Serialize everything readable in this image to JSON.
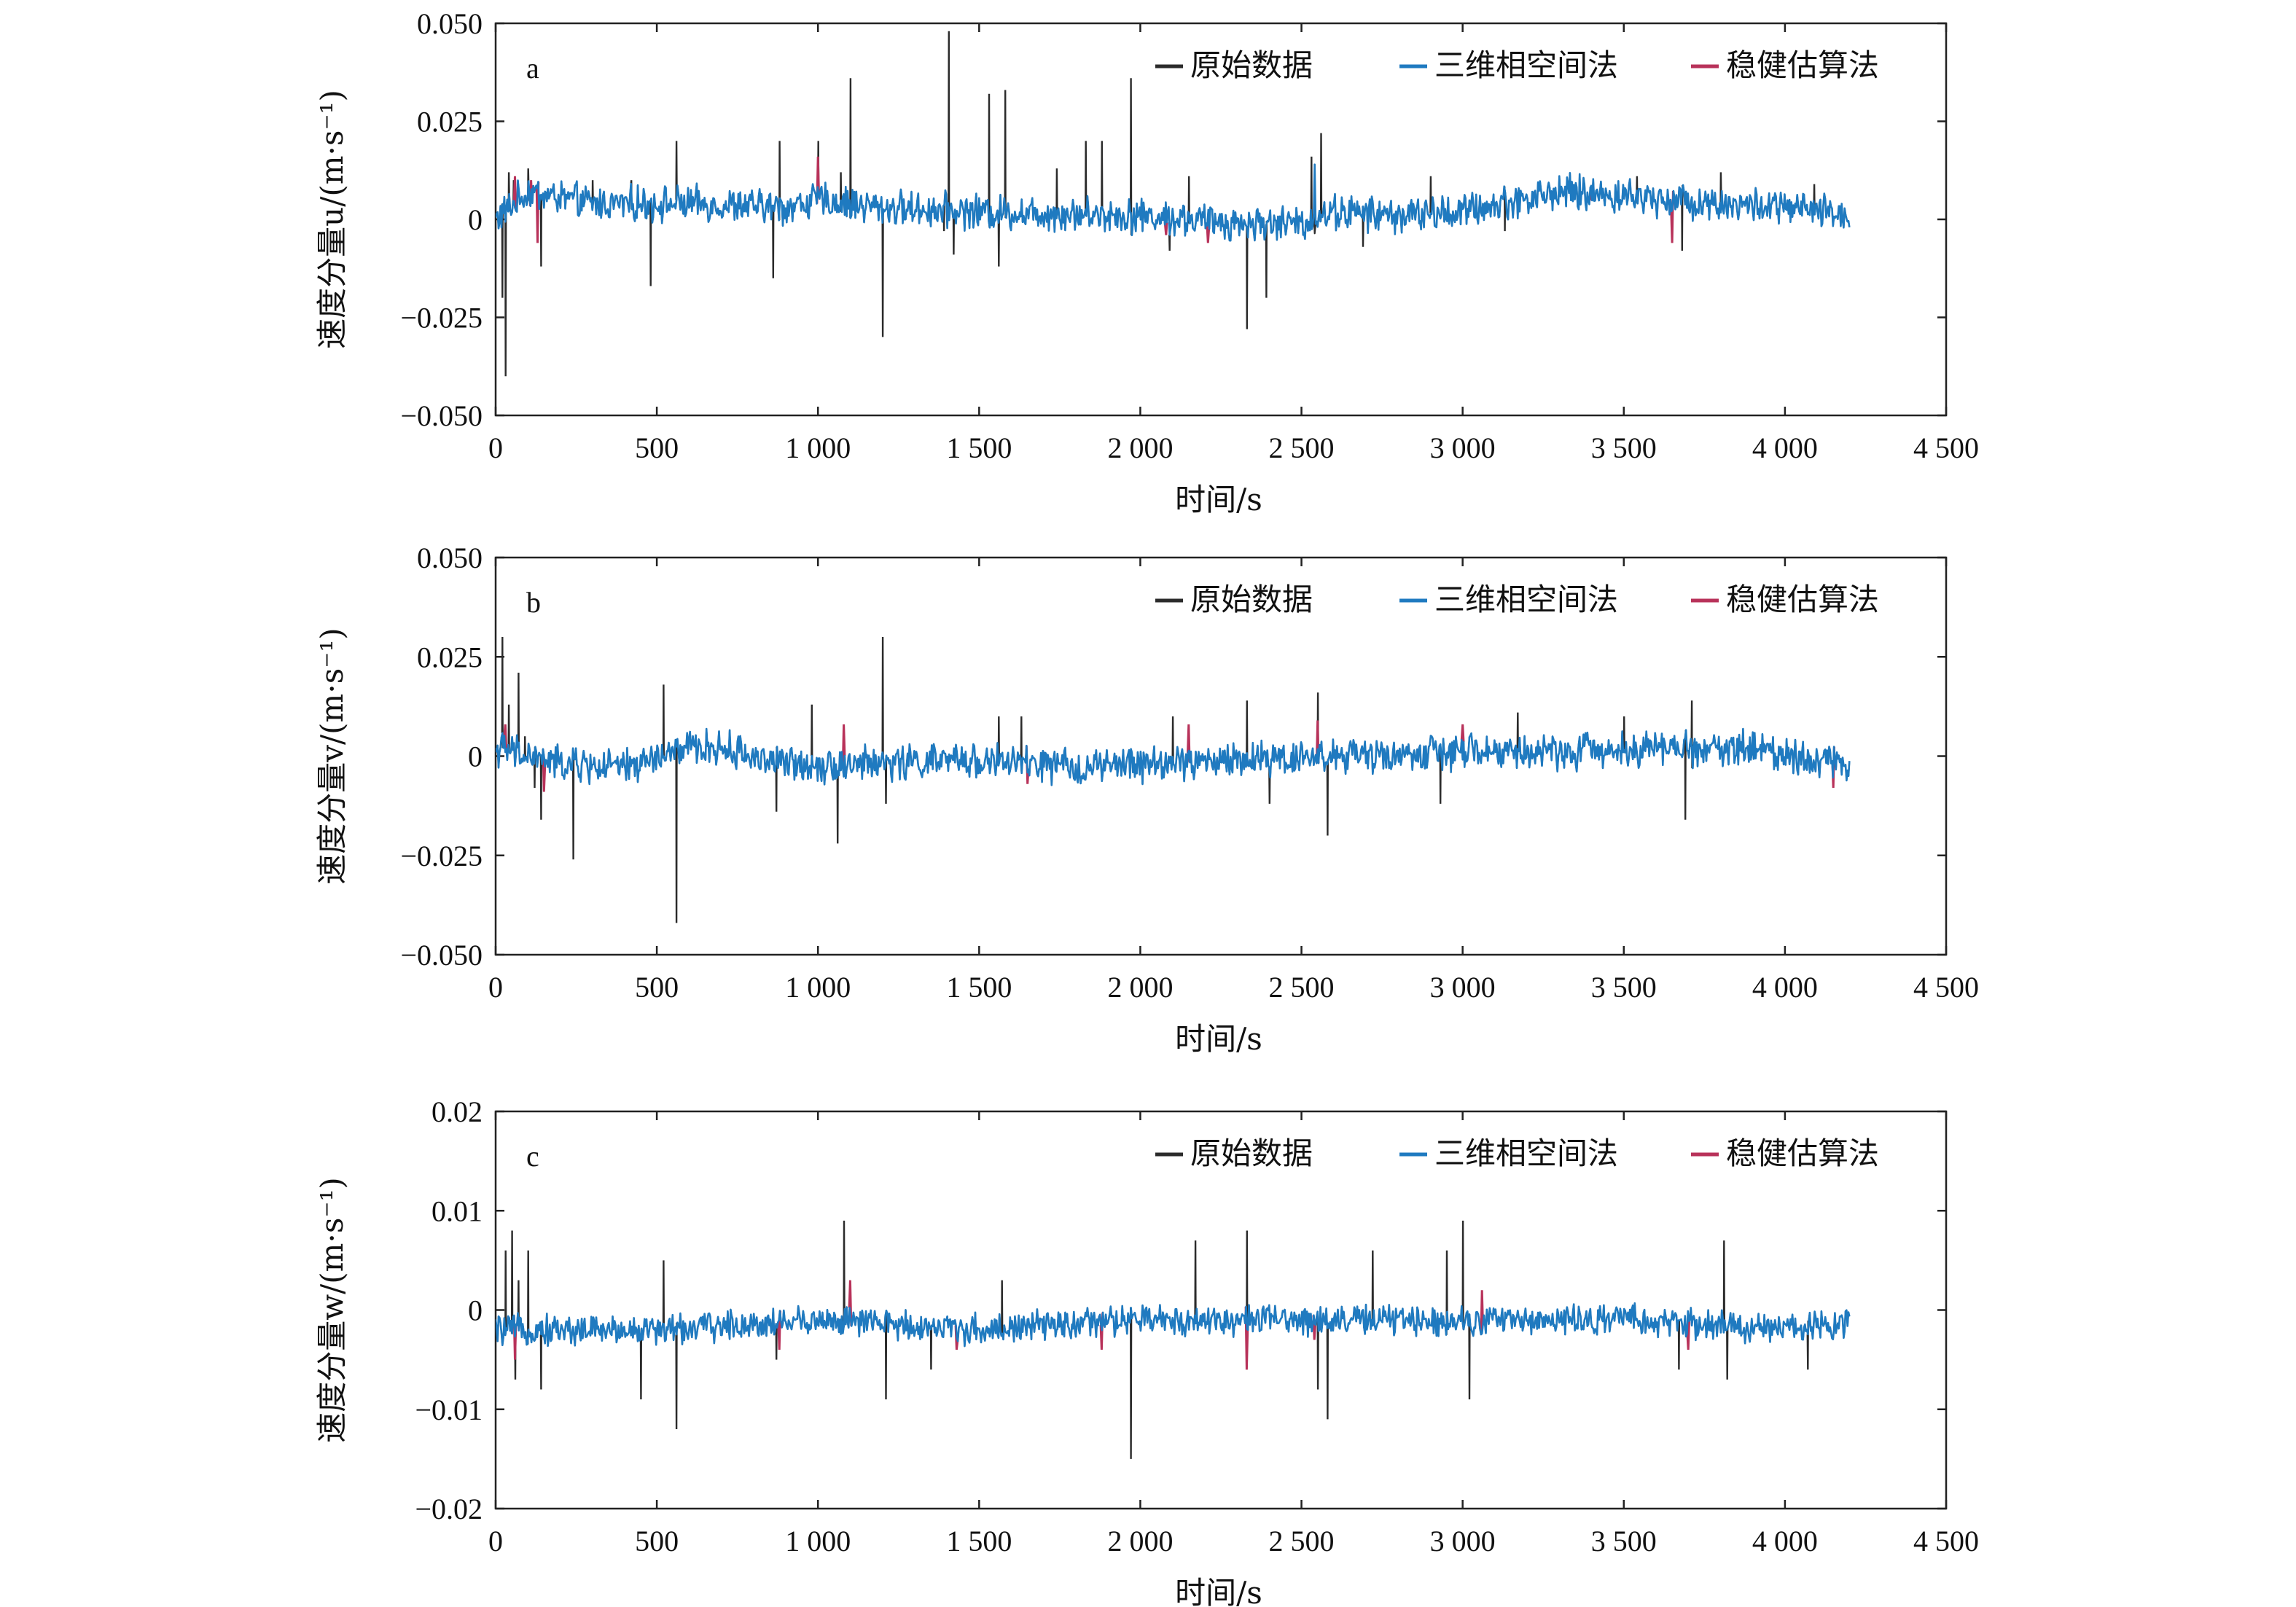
{
  "colors": {
    "raw": "#2b2b2b",
    "phase_space": "#1f7ac0",
    "robust": "#b8325a"
  },
  "legend": [
    "原始数据",
    "三维相空间法",
    "稳健估算法"
  ],
  "chart_data": [
    {
      "type": "line",
      "panel": "a",
      "xlabel": "时间/s",
      "ylabel": "速度分量u/(m·s⁻¹)",
      "xlim": [
        0,
        4500
      ],
      "ylim": [
        -0.05,
        0.05
      ],
      "xticks": [
        0,
        500,
        1000,
        1500,
        2000,
        2500,
        3000,
        3500,
        4000,
        4500
      ],
      "xtick_labels": [
        "0",
        "500",
        "1 000",
        "1 500",
        "2 000",
        "2 500",
        "3 000",
        "3 500",
        "4 000",
        "4 500"
      ],
      "yticks": [
        0.05,
        0.025,
        0,
        -0.025,
        -0.05
      ],
      "ytick_labels": [
        "0.050",
        "0.025",
        "0",
        "−0.025",
        "−0.050"
      ],
      "x_end": 4200,
      "baseline": [
        [
          0,
          0
        ],
        [
          100,
          0.007
        ],
        [
          300,
          0.004
        ],
        [
          600,
          0.004
        ],
        [
          900,
          0.003
        ],
        [
          1000,
          0.005
        ],
        [
          1200,
          0.003
        ],
        [
          1500,
          0.002
        ],
        [
          2000,
          0.001
        ],
        [
          2300,
          -0.001
        ],
        [
          2500,
          -0.001
        ],
        [
          2600,
          0.002
        ],
        [
          2800,
          0.001
        ],
        [
          3000,
          0.002
        ],
        [
          3300,
          0.007
        ],
        [
          3500,
          0.006
        ],
        [
          3800,
          0.004
        ],
        [
          4000,
          0.003
        ],
        [
          4200,
          0.001
        ]
      ],
      "noise": 0.0035,
      "series": [
        {
          "name": "原始数据",
          "spikes": [
            [
              20,
              -0.02
            ],
            [
              30,
              -0.04
            ],
            [
              40,
              0.012
            ],
            [
              55,
              0.01
            ],
            [
              100,
              0.013
            ],
            [
              140,
              -0.012
            ],
            [
              300,
              0.01
            ],
            [
              420,
              0.01
            ],
            [
              480,
              -0.017
            ],
            [
              560,
              0.02
            ],
            [
              860,
              -0.015
            ],
            [
              880,
              0.02
            ],
            [
              1000,
              0.02
            ],
            [
              1070,
              0.012
            ],
            [
              1100,
              0.036
            ],
            [
              1200,
              -0.03
            ],
            [
              1390,
              -0.003
            ],
            [
              1405,
              0.048
            ],
            [
              1420,
              -0.009
            ],
            [
              1530,
              0.032
            ],
            [
              1560,
              -0.012
            ],
            [
              1580,
              0.033
            ],
            [
              1740,
              0.013
            ],
            [
              1830,
              0.02
            ],
            [
              1880,
              0.02
            ],
            [
              1970,
              0.036
            ],
            [
              2090,
              -0.008
            ],
            [
              2150,
              0.011
            ],
            [
              2330,
              -0.028
            ],
            [
              2390,
              -0.02
            ],
            [
              2530,
              0.016
            ],
            [
              2560,
              0.022
            ],
            [
              2690,
              -0.007
            ],
            [
              2900,
              0.011
            ],
            [
              3130,
              -0.003
            ],
            [
              3270,
              0.007
            ],
            [
              3540,
              0.011
            ],
            [
              3680,
              -0.008
            ],
            [
              3800,
              0.012
            ],
            [
              4090,
              0.009
            ]
          ]
        },
        {
          "name": "三维相空间法",
          "spikes": [
            [
              2540,
              0.014
            ]
          ]
        },
        {
          "name": "稳健估算法",
          "spikes": [
            [
              60,
              0.011
            ],
            [
              110,
              0.01
            ],
            [
              130,
              -0.006
            ],
            [
              1000,
              0.016
            ],
            [
              2080,
              -0.004
            ],
            [
              2210,
              -0.006
            ],
            [
              3400,
              0.005
            ],
            [
              3650,
              -0.006
            ]
          ]
        }
      ]
    },
    {
      "type": "line",
      "panel": "b",
      "xlabel": "时间/s",
      "ylabel": "速度分量v/(m·s⁻¹)",
      "xlim": [
        0,
        4500
      ],
      "ylim": [
        -0.05,
        0.05
      ],
      "xticks": [
        0,
        500,
        1000,
        1500,
        2000,
        2500,
        3000,
        3500,
        4000,
        4500
      ],
      "xtick_labels": [
        "0",
        "500",
        "1 000",
        "1 500",
        "2 000",
        "2 500",
        "3 000",
        "3 500",
        "4 000",
        "4 500"
      ],
      "yticks": [
        0.05,
        0.025,
        0,
        -0.025,
        -0.05
      ],
      "ytick_labels": [
        "0.050",
        "0.025",
        "0",
        "−0.025",
        "−0.050"
      ],
      "x_end": 4200,
      "baseline": [
        [
          0,
          0.002
        ],
        [
          200,
          -0.002
        ],
        [
          400,
          -0.003
        ],
        [
          600,
          0.002
        ],
        [
          700,
          0.002
        ],
        [
          900,
          -0.002
        ],
        [
          1100,
          -0.002
        ],
        [
          1500,
          -0.001
        ],
        [
          1800,
          -0.003
        ],
        [
          2000,
          -0.002
        ],
        [
          2300,
          -0.001
        ],
        [
          2500,
          0
        ],
        [
          2700,
          0
        ],
        [
          3000,
          0.001
        ],
        [
          3300,
          0.001
        ],
        [
          3500,
          0.002
        ],
        [
          3700,
          0.002
        ],
        [
          3900,
          0.002
        ],
        [
          4200,
          -0.002
        ]
      ],
      "noise": 0.0035,
      "series": [
        {
          "name": "原始数据",
          "spikes": [
            [
              20,
              0.03
            ],
            [
              40,
              0.013
            ],
            [
              70,
              0.021
            ],
            [
              90,
              0.005
            ],
            [
              120,
              -0.008
            ],
            [
              140,
              -0.016
            ],
            [
              240,
              -0.026
            ],
            [
              520,
              0.018
            ],
            [
              560,
              -0.042
            ],
            [
              870,
              -0.014
            ],
            [
              980,
              0.013
            ],
            [
              1060,
              -0.022
            ],
            [
              1200,
              0.03
            ],
            [
              1210,
              -0.012
            ],
            [
              1560,
              0.01
            ],
            [
              1630,
              0.01
            ],
            [
              2100,
              0.01
            ],
            [
              2330,
              0.014
            ],
            [
              2400,
              -0.012
            ],
            [
              2550,
              0.016
            ],
            [
              2580,
              -0.02
            ],
            [
              2930,
              -0.012
            ],
            [
              3170,
              0.011
            ],
            [
              3500,
              0.01
            ],
            [
              3690,
              -0.016
            ],
            [
              3710,
              0.014
            ]
          ]
        },
        {
          "name": "三维相空间法",
          "spikes": []
        },
        {
          "name": "稳健估算法",
          "spikes": [
            [
              30,
              0.008
            ],
            [
              150,
              -0.009
            ],
            [
              1080,
              0.008
            ],
            [
              1650,
              -0.007
            ],
            [
              2150,
              0.008
            ],
            [
              2550,
              0.009
            ],
            [
              3000,
              0.008
            ],
            [
              4150,
              -0.008
            ]
          ]
        }
      ]
    },
    {
      "type": "line",
      "panel": "c",
      "xlabel": "时间/s",
      "ylabel": "速度分量w/(m·s⁻¹)",
      "xlim": [
        0,
        4500
      ],
      "ylim": [
        -0.02,
        0.02
      ],
      "xticks": [
        0,
        500,
        1000,
        1500,
        2000,
        2500,
        3000,
        3500,
        4000,
        4500
      ],
      "xtick_labels": [
        "0",
        "500",
        "1 000",
        "1 500",
        "2 000",
        "2 500",
        "3 000",
        "3 500",
        "4 000",
        "4 500"
      ],
      "yticks": [
        0.02,
        0.01,
        0,
        -0.01,
        -0.02
      ],
      "ytick_labels": [
        "0.02",
        "0.01",
        "0",
        "−0.01",
        "−0.02"
      ],
      "x_end": 4200,
      "baseline": [
        [
          0,
          -0.002
        ],
        [
          500,
          -0.002
        ],
        [
          1000,
          -0.001
        ],
        [
          1500,
          -0.002
        ],
        [
          2000,
          -0.001
        ],
        [
          2500,
          -0.001
        ],
        [
          3000,
          -0.001
        ],
        [
          3500,
          -0.001
        ],
        [
          4000,
          -0.002
        ],
        [
          4200,
          -0.001
        ]
      ],
      "noise": 0.0012,
      "series": [
        {
          "name": "原始数据",
          "spikes": [
            [
              30,
              0.006
            ],
            [
              50,
              0.008
            ],
            [
              60,
              -0.007
            ],
            [
              70,
              0.003
            ],
            [
              100,
              0.006
            ],
            [
              140,
              -0.008
            ],
            [
              450,
              -0.009
            ],
            [
              520,
              0.005
            ],
            [
              560,
              -0.012
            ],
            [
              870,
              -0.005
            ],
            [
              1080,
              0.009
            ],
            [
              1210,
              -0.009
            ],
            [
              1350,
              -0.006
            ],
            [
              1570,
              0.003
            ],
            [
              1970,
              -0.015
            ],
            [
              2170,
              0.007
            ],
            [
              2330,
              0.008
            ],
            [
              2550,
              -0.008
            ],
            [
              2580,
              -0.011
            ],
            [
              2720,
              0.006
            ],
            [
              2950,
              0.006
            ],
            [
              3000,
              0.009
            ],
            [
              3020,
              -0.009
            ],
            [
              3670,
              -0.006
            ],
            [
              3810,
              0.007
            ],
            [
              3820,
              -0.007
            ],
            [
              4070,
              -0.006
            ]
          ]
        },
        {
          "name": "三维相空间法",
          "spikes": []
        },
        {
          "name": "稳健估算法",
          "spikes": [
            [
              60,
              -0.005
            ],
            [
              880,
              -0.004
            ],
            [
              1100,
              0.003
            ],
            [
              1430,
              -0.004
            ],
            [
              1880,
              -0.004
            ],
            [
              2330,
              -0.006
            ],
            [
              2540,
              -0.003
            ],
            [
              3060,
              0.002
            ],
            [
              3700,
              -0.004
            ]
          ]
        }
      ]
    }
  ]
}
